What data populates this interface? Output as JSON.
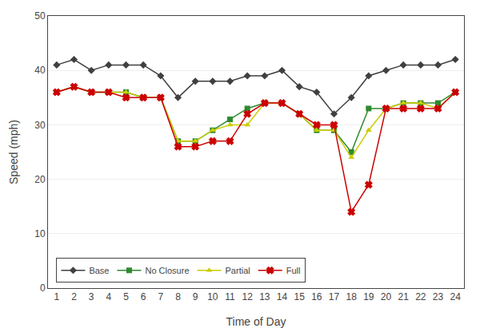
{
  "chart_data": {
    "type": "line",
    "xlabel": "Time of Day",
    "ylabel": "Speed (mph)",
    "x": [
      1,
      2,
      3,
      4,
      5,
      6,
      7,
      8,
      9,
      10,
      11,
      12,
      13,
      14,
      15,
      16,
      17,
      18,
      19,
      20,
      21,
      22,
      23,
      24
    ],
    "series": [
      {
        "name": "Base",
        "color": "#404040",
        "marker": "diamond",
        "values": [
          41,
          42,
          40,
          41,
          41,
          41,
          39,
          35,
          38,
          38,
          38,
          39,
          39,
          40,
          37,
          36,
          32,
          35,
          39,
          40,
          41,
          41,
          41,
          42
        ]
      },
      {
        "name": "No Closure",
        "color": "#2E8B2E",
        "marker": "square",
        "values": [
          36,
          37,
          36,
          36,
          36,
          35,
          35,
          27,
          27,
          29,
          31,
          33,
          34,
          34,
          32,
          29,
          29,
          25,
          33,
          33,
          34,
          34,
          34,
          36
        ]
      },
      {
        "name": "Partial",
        "color": "#CCCC00",
        "marker": "triangle-up",
        "values": [
          36,
          37,
          36,
          36,
          36,
          35,
          35,
          27,
          27,
          29,
          30,
          30,
          34,
          34,
          32,
          29,
          29,
          24,
          29,
          33,
          34,
          34,
          33,
          36
        ]
      },
      {
        "name": "Full",
        "color": "#CC0000",
        "marker": "x",
        "values": [
          36,
          37,
          36,
          36,
          35,
          35,
          35,
          26,
          26,
          27,
          27,
          32,
          34,
          34,
          32,
          30,
          30,
          14,
          19,
          33,
          33,
          33,
          33,
          36
        ]
      }
    ],
    "xlim": [
      0.5,
      24.5
    ],
    "xticks": [
      1,
      2,
      3,
      4,
      5,
      6,
      7,
      8,
      9,
      10,
      11,
      12,
      13,
      14,
      15,
      16,
      17,
      18,
      19,
      20,
      21,
      22,
      23,
      24
    ],
    "ylim": [
      0,
      50
    ],
    "yticks": [
      0,
      10,
      20,
      30,
      40,
      50
    ],
    "grid": true,
    "legend": "lower left"
  }
}
